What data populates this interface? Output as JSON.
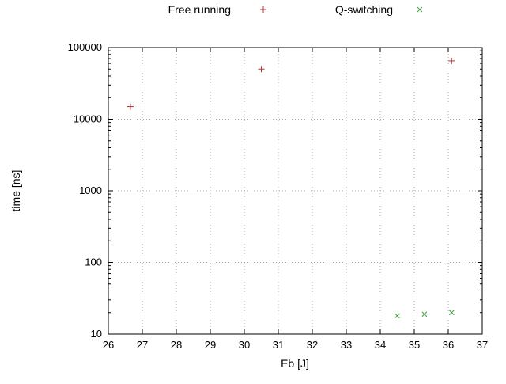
{
  "chart_data": {
    "type": "scatter",
    "title": "",
    "xlabel": "Eb [J]",
    "ylabel": "time [ns]",
    "xlim": [
      26,
      37
    ],
    "ylim": [
      10,
      100000
    ],
    "x_scale": "linear",
    "y_scale": "log",
    "x_ticks": [
      26,
      27,
      28,
      29,
      30,
      31,
      32,
      33,
      34,
      35,
      36,
      37
    ],
    "y_ticks": [
      10,
      100,
      1000,
      10000,
      100000
    ],
    "grid": true,
    "grid_style": "dotted",
    "legend_position": "top",
    "colors": {
      "free_running": "#c03030",
      "q_switching": "#3fa03f",
      "grid": "#ababab",
      "border": "#000000"
    },
    "series": [
      {
        "name": "Free running",
        "marker": "plus",
        "color": "#c03030",
        "points": [
          [
            26.65,
            15000
          ],
          [
            30.5,
            50000
          ],
          [
            36.1,
            65000
          ]
        ]
      },
      {
        "name": "Q-switching",
        "marker": "cross",
        "color": "#3fa03f",
        "points": [
          [
            34.5,
            18
          ],
          [
            35.3,
            19
          ],
          [
            36.1,
            20
          ]
        ]
      }
    ]
  }
}
